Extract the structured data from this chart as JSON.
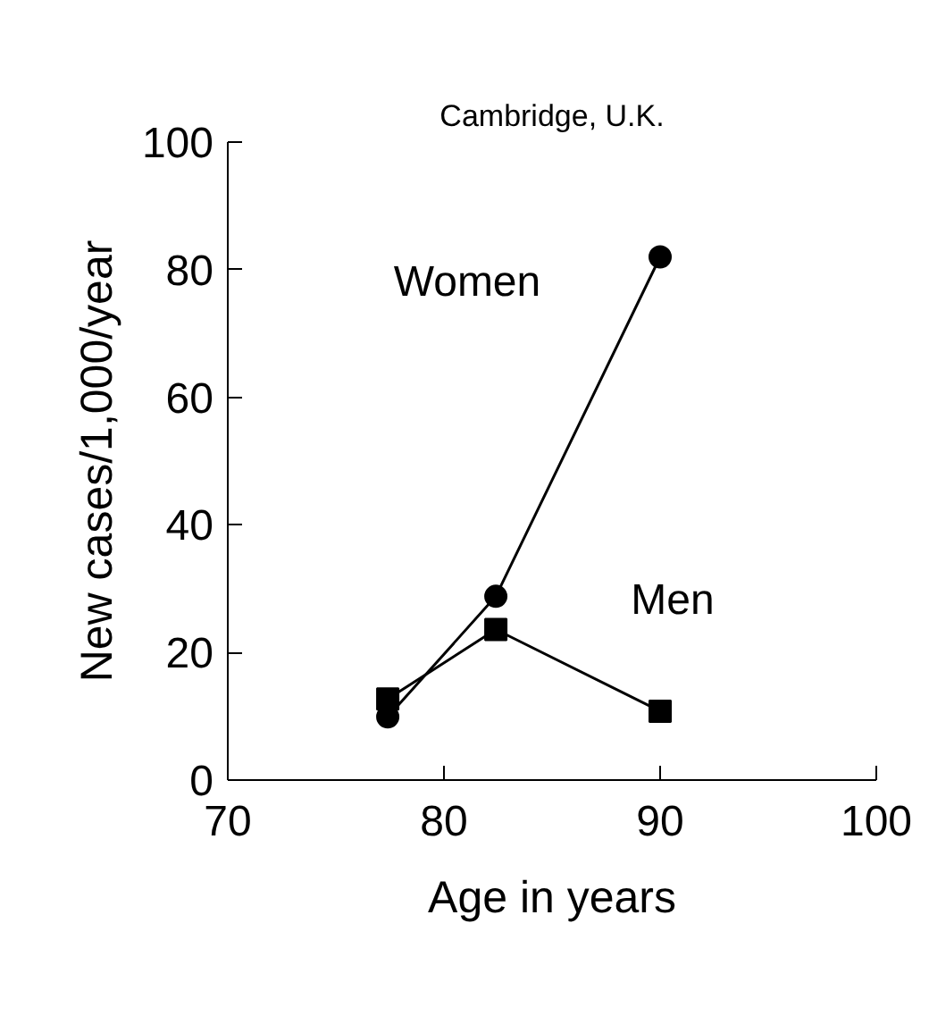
{
  "chart_data": {
    "type": "line",
    "title": "Cambridge, U.K.",
    "xlabel": "Age in years",
    "ylabel": "New cases/1,000/year",
    "x": [
      77.4,
      82.4,
      90
    ],
    "series": [
      {
        "name": "Women",
        "color": "#000000",
        "marker": "circle",
        "values": [
          9.9,
          28.8,
          82
        ]
      },
      {
        "name": "Men",
        "color": "#000000",
        "marker": "square",
        "values": [
          12.7,
          23.6,
          10.8
        ]
      }
    ],
    "xlim": [
      70,
      100
    ],
    "xticks": [
      70,
      80,
      90,
      100
    ],
    "ylim": [
      0,
      100
    ],
    "yticks": [
      0,
      20,
      40,
      60,
      80,
      100
    ],
    "grid": false,
    "line_style": "solid"
  }
}
